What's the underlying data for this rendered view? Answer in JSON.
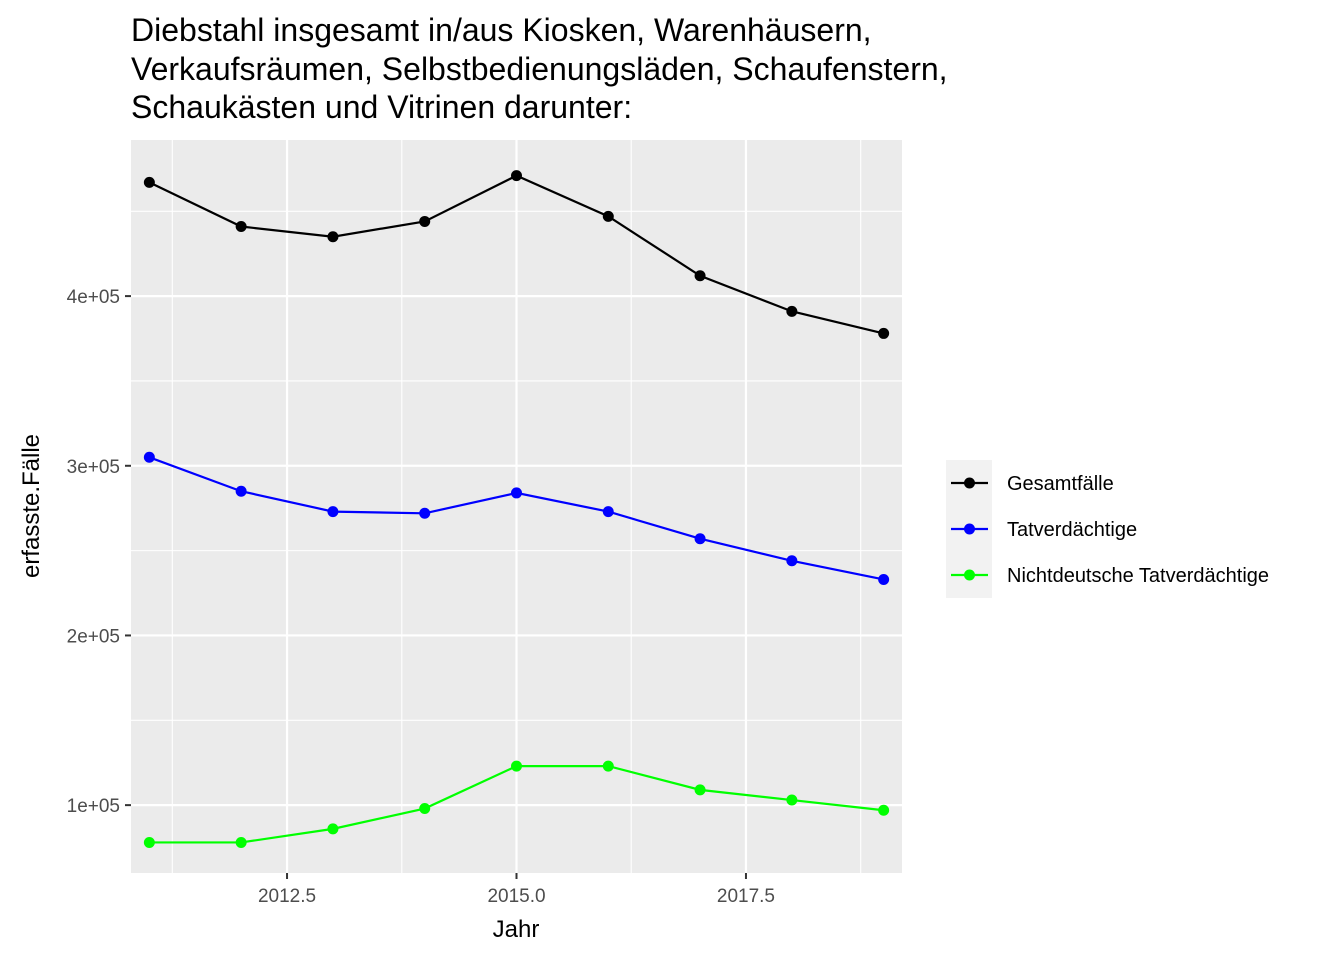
{
  "chart_data": {
    "type": "line",
    "title_lines": [
      "Diebstahl insgesamt in/aus Kiosken, Warenhäusern,",
      "Verkaufsräumen, Selbstbedienungsläden, Schaufenstern,",
      "Schaukästen und Vitrinen darunter:"
    ],
    "xlabel": "Jahr",
    "ylabel": "erfasste.Fälle",
    "x": [
      2011,
      2012,
      2013,
      2014,
      2015,
      2016,
      2017,
      2018,
      2019
    ],
    "xlim": [
      2010.8,
      2019.2
    ],
    "ylim": [
      60000,
      492000
    ],
    "x_ticks": [
      2012.5,
      2015.0,
      2017.5
    ],
    "x_tick_labels": [
      "2012.5",
      "2015.0",
      "2017.5"
    ],
    "y_ticks": [
      100000,
      200000,
      300000,
      400000
    ],
    "y_tick_labels": [
      "1e+05",
      "2e+05",
      "3e+05",
      "4e+05"
    ],
    "grid": true,
    "legend_position": "right",
    "series": [
      {
        "name": "Gesamtfälle",
        "color": "#000000",
        "values": [
          467000,
          441000,
          435000,
          444000,
          471000,
          447000,
          412000,
          391000,
          378000
        ]
      },
      {
        "name": "Tatverdächtige",
        "color": "#0000ff",
        "values": [
          305000,
          285000,
          273000,
          272000,
          284000,
          273000,
          257000,
          244000,
          233000
        ]
      },
      {
        "name": "Nichtdeutsche Tatverdächtige",
        "color": "#00ff00",
        "values": [
          78000,
          78000,
          86000,
          98000,
          123000,
          123000,
          109000,
          103000,
          97000
        ]
      }
    ]
  }
}
